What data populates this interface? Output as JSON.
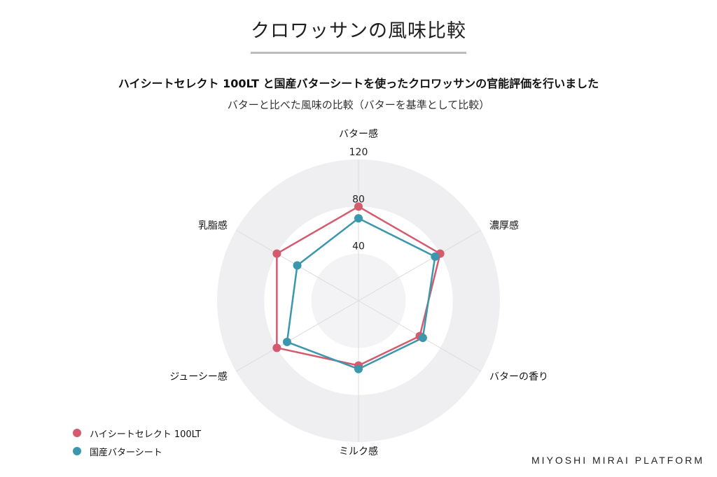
{
  "header": {
    "title": "クロワッサンの風味比較",
    "headline": "ハイシートセレクト 100LT と国産バターシートを使ったクロワッサンの官能評価を行いました",
    "subheadline": "バターと比べた風味の比較（バターを基準として比較）"
  },
  "chart_data": {
    "type": "radar",
    "axes": [
      "バター感",
      "濃厚感",
      "バターの香り",
      "ミルク感",
      "ジューシー感",
      "乳脂感"
    ],
    "rmax": 120,
    "ticks": [
      40,
      80,
      120
    ],
    "series": [
      {
        "name": "ハイシートセレクト 100LT",
        "color": "#d45a6e",
        "values": [
          80,
          80,
          60,
          55,
          80,
          80
        ]
      },
      {
        "name": "国産バターシート",
        "color": "#3a97ad",
        "values": [
          70,
          75,
          63,
          58,
          70,
          60
        ]
      }
    ],
    "band_colors": [
      "#efeff1",
      "#ffffff",
      "#f3f3f5"
    ]
  },
  "legend": {
    "items": [
      {
        "label": "ハイシートセレクト 100LT",
        "color": "#d45a6e"
      },
      {
        "label": "国産バターシート",
        "color": "#3a97ad"
      }
    ]
  },
  "footer": {
    "brand": "MIYOSHI MIRAI PLATFORM"
  }
}
